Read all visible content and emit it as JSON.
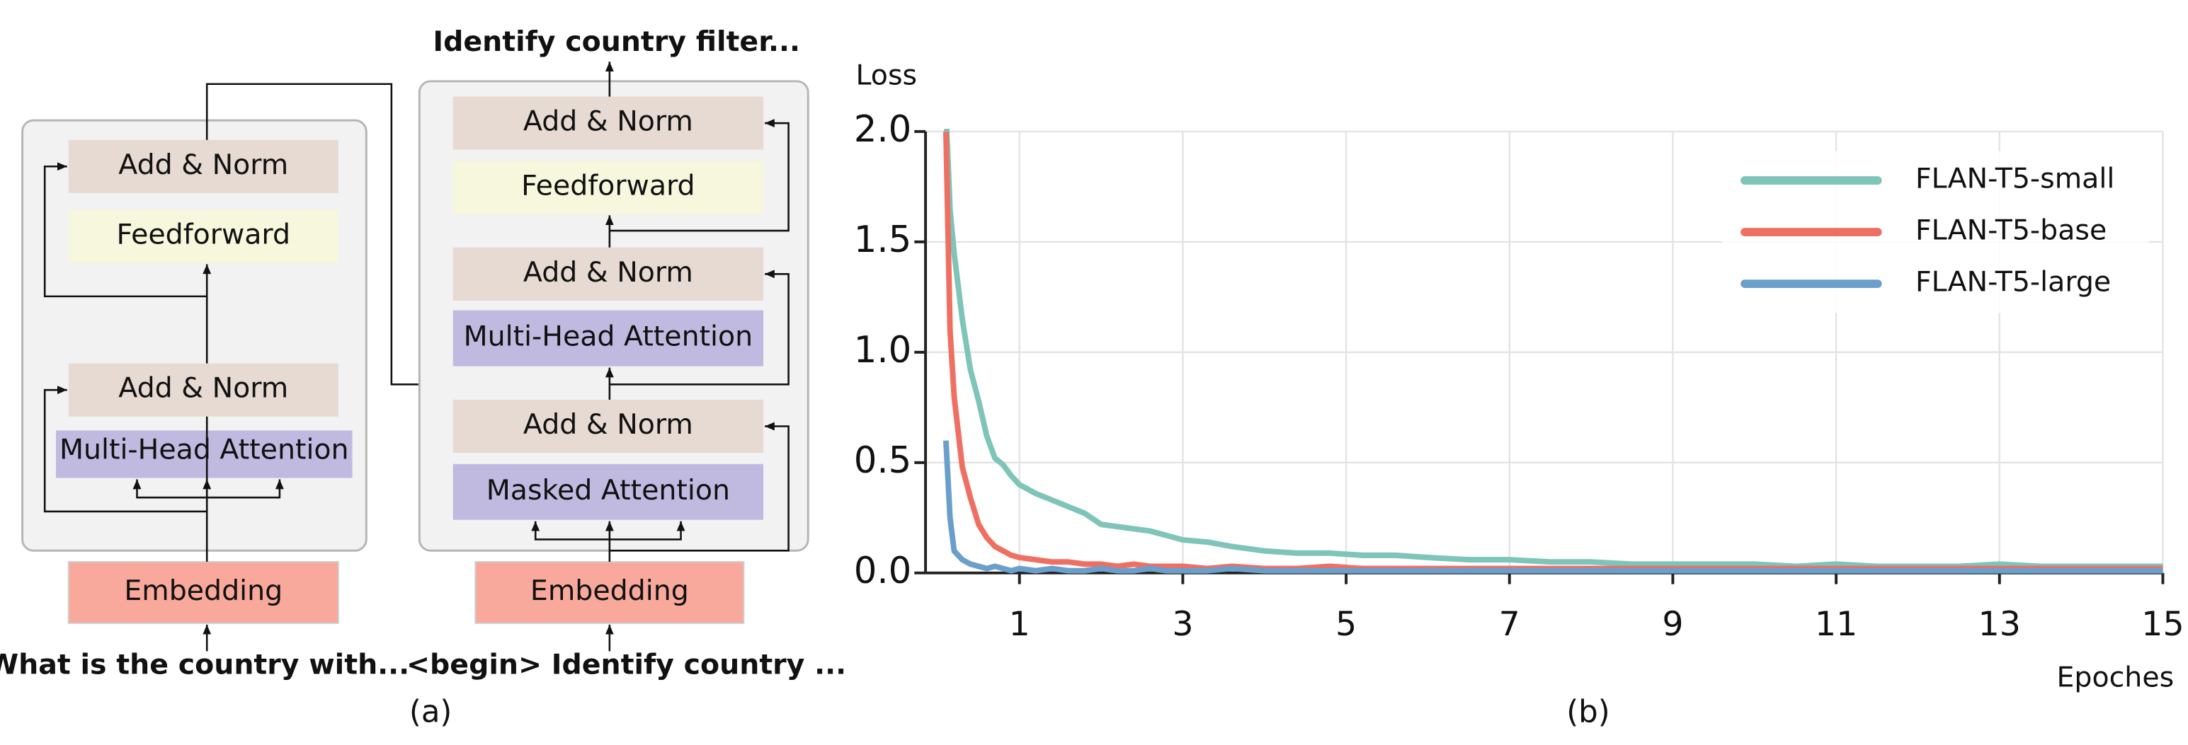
{
  "diagram": {
    "encoder": {
      "input": "What is the country with...",
      "embedding": "Embedding",
      "layers": [
        "Multi-Head Attention",
        "Add & Norm",
        "Feedforward",
        "Add & Norm"
      ]
    },
    "decoder": {
      "input": "<begin> Identify country ...",
      "embedding": "Embedding",
      "layers": [
        "Masked Attention",
        "Add & Norm",
        "Multi-Head Attention",
        "Add & Norm",
        "Feedforward",
        "Add & Norm"
      ],
      "output": "Identify country filter..."
    }
  },
  "captions": [
    "(a)",
    "(b)"
  ],
  "chart_data": {
    "type": "line",
    "x_label": "Epoches",
    "y_label": "Loss",
    "x": [
      0.1,
      0.15,
      0.2,
      0.3,
      0.4,
      0.5,
      0.6,
      0.7,
      0.8,
      0.9,
      1.0,
      1.2,
      1.4,
      1.6,
      1.8,
      2.0,
      2.2,
      2.4,
      2.6,
      2.8,
      3.0,
      3.3,
      3.6,
      4.0,
      4.4,
      4.8,
      5.2,
      5.6,
      6.0,
      6.5,
      7.0,
      7.5,
      8.0,
      8.5,
      9.0,
      9.5,
      10,
      10.5,
      11,
      11.5,
      12,
      12.5,
      13,
      13.5,
      14,
      14.5,
      15
    ],
    "series": [
      {
        "name": "FLAN-T5-small",
        "color": "#7ec4b8",
        "values": [
          2.1,
          1.65,
          1.45,
          1.15,
          0.92,
          0.78,
          0.62,
          0.52,
          0.49,
          0.44,
          0.4,
          0.36,
          0.33,
          0.3,
          0.27,
          0.22,
          0.21,
          0.2,
          0.19,
          0.17,
          0.15,
          0.14,
          0.12,
          0.1,
          0.09,
          0.09,
          0.08,
          0.08,
          0.07,
          0.06,
          0.06,
          0.05,
          0.05,
          0.04,
          0.04,
          0.04,
          0.04,
          0.03,
          0.04,
          0.03,
          0.03,
          0.03,
          0.04,
          0.03,
          0.03,
          0.03,
          0.03
        ]
      },
      {
        "name": "FLAN-T5-base",
        "color": "#ef6f62",
        "values": [
          2.0,
          1.1,
          0.8,
          0.48,
          0.34,
          0.22,
          0.16,
          0.12,
          0.1,
          0.08,
          0.07,
          0.06,
          0.05,
          0.05,
          0.04,
          0.04,
          0.03,
          0.04,
          0.03,
          0.03,
          0.03,
          0.02,
          0.03,
          0.02,
          0.02,
          0.03,
          0.02,
          0.02,
          0.02,
          0.02,
          0.02,
          0.02,
          0.02,
          0.02,
          0.02,
          0.02,
          0.02,
          0.02,
          0.02,
          0.02,
          0.02,
          0.02,
          0.02,
          0.02,
          0.02,
          0.02,
          0.02
        ]
      },
      {
        "name": "FLAN-T5-large",
        "color": "#6a9ecb",
        "values": [
          0.6,
          0.25,
          0.1,
          0.06,
          0.04,
          0.03,
          0.02,
          0.03,
          0.02,
          0.01,
          0.02,
          0.01,
          0.02,
          0.01,
          0.01,
          0.02,
          0.01,
          0.01,
          0.02,
          0.01,
          0.01,
          0.01,
          0.02,
          0.01,
          0.01,
          0.01,
          0.01,
          0.01,
          0.01,
          0.01,
          0.01,
          0.01,
          0.01,
          0.01,
          0.01,
          0.01,
          0.01,
          0.01,
          0.01,
          0.01,
          0.01,
          0.01,
          0.01,
          0.01,
          0.01,
          0.01,
          0.01
        ]
      }
    ],
    "xlim": [
      -0.15,
      15
    ],
    "ylim": [
      0,
      2
    ],
    "xticks": [
      1,
      3,
      5,
      7,
      9,
      11,
      13,
      15
    ],
    "yticks": [
      {
        "value": 0,
        "label": "0.0"
      },
      0.5,
      {
        "value": 1,
        "label": "1.0"
      },
      1.5,
      {
        "value": 2,
        "label": "2.0"
      }
    ],
    "grid": true,
    "legend": "upper right"
  }
}
